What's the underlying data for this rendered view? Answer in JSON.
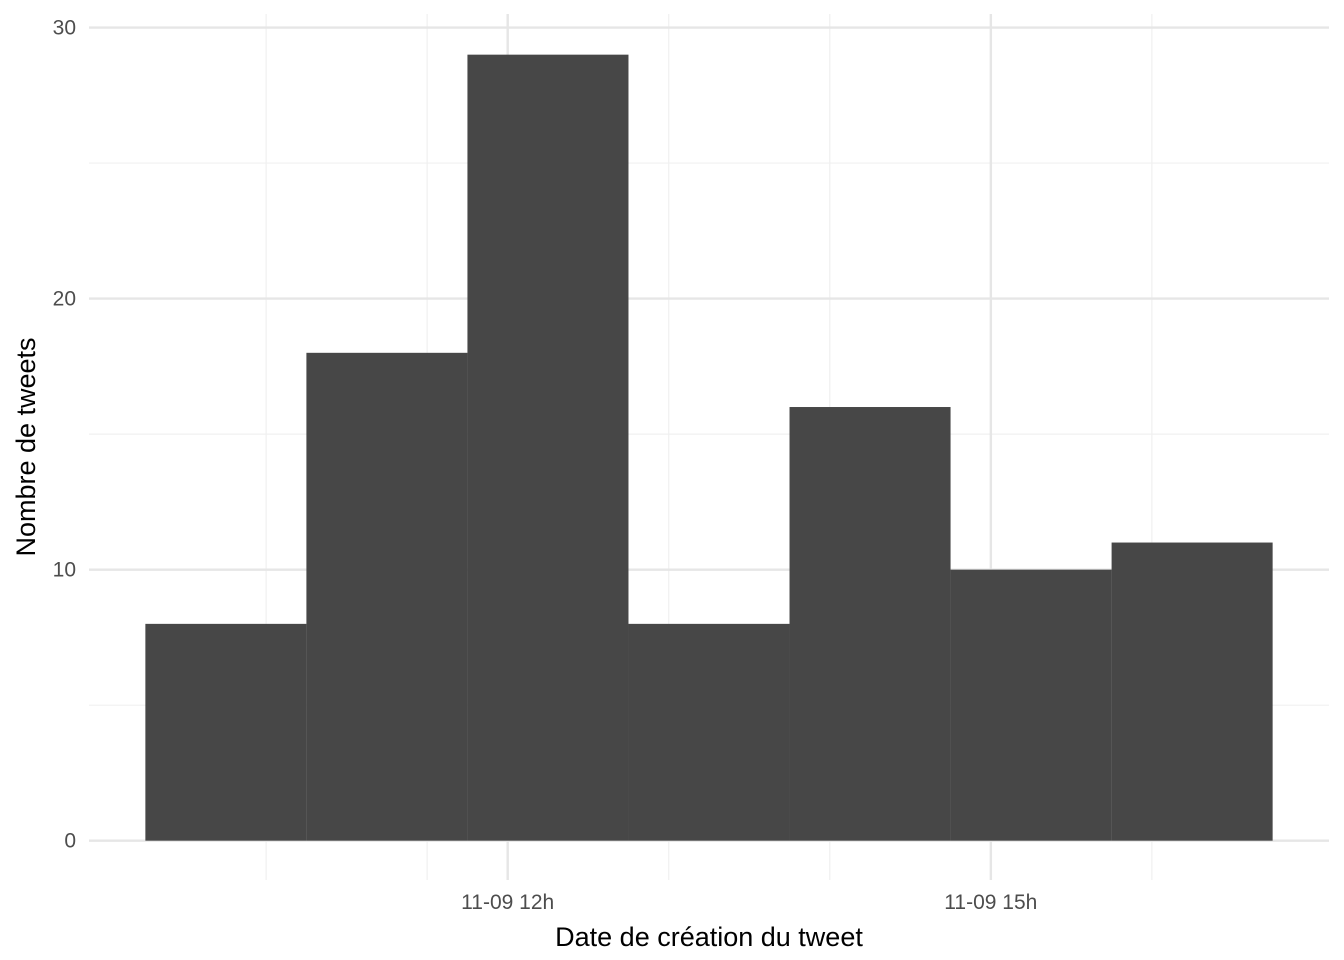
{
  "chart_data": {
    "type": "bar",
    "title": "",
    "xlabel": "Date de création du tweet",
    "ylabel": "Nombre de tweets",
    "x_unit": "hour (11-09)",
    "bin_width_hours": 1,
    "bins": [
      {
        "start": 9.75,
        "end": 10.75,
        "value": 8
      },
      {
        "start": 10.75,
        "end": 11.75,
        "value": 18
      },
      {
        "start": 11.75,
        "end": 12.75,
        "value": 29
      },
      {
        "start": 12.75,
        "end": 13.75,
        "value": 8
      },
      {
        "start": 13.75,
        "end": 14.75,
        "value": 16
      },
      {
        "start": 14.75,
        "end": 15.75,
        "value": 10
      },
      {
        "start": 15.75,
        "end": 16.75,
        "value": 11
      }
    ],
    "xlim": [
      9.4,
      17.1
    ],
    "ylim": [
      -1.45,
      30.5
    ],
    "x_major_ticks": [
      {
        "value": 12,
        "label": "11-09 12h"
      },
      {
        "value": 15,
        "label": "11-09 15h"
      }
    ],
    "x_minor_ticks": [
      10.5,
      11.5,
      13.0,
      14.0,
      16.0
    ],
    "y_major_ticks": [
      0,
      10,
      20,
      30
    ],
    "y_minor_ticks": [
      5,
      15,
      25
    ],
    "grid": true,
    "legend": "none",
    "colors": {
      "bar": "#474747",
      "grid_major": "#e6e6e6",
      "grid_minor": "#f0f0f0"
    }
  }
}
